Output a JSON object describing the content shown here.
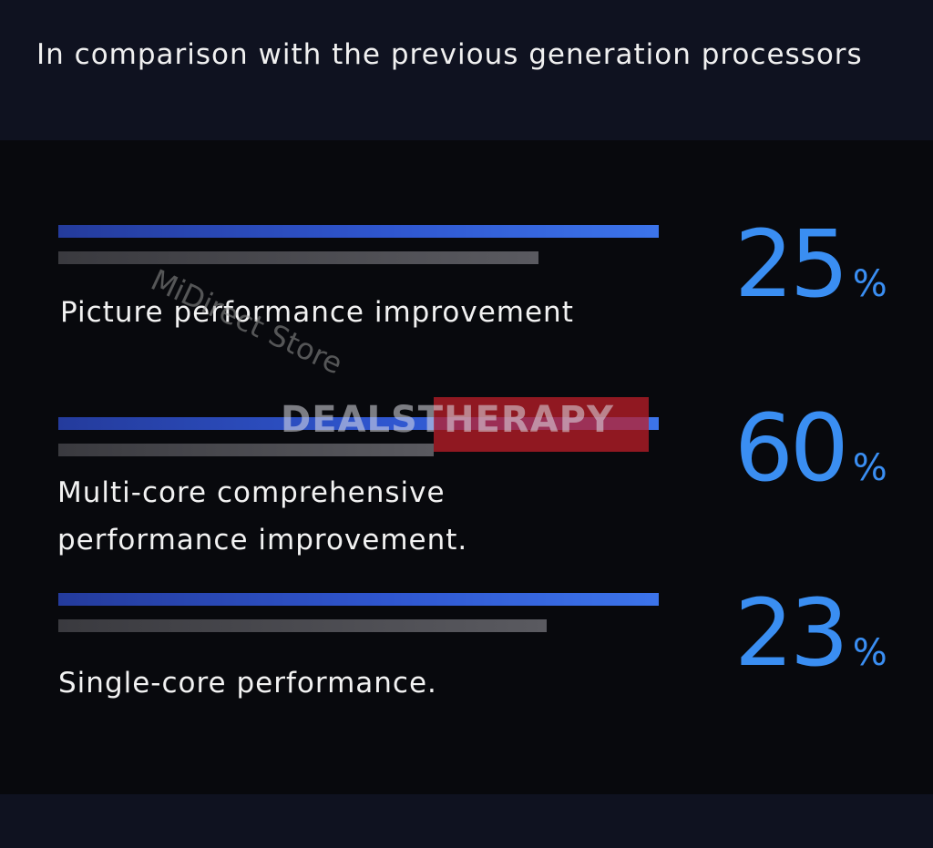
{
  "header": {
    "title": "In comparison with the previous generation processors"
  },
  "colors": {
    "accent_blue": "#3a8ef2",
    "bar_blue": "#2f56cf",
    "bar_gray": "#55555a",
    "panel_background": "#08090d"
  },
  "watermarks": {
    "store": "MiDirect Store",
    "brand": "DEALSTHERAPY"
  },
  "chart_data": {
    "type": "bar",
    "title": "In comparison with the previous generation processors",
    "categories": [
      "Picture performance improvement",
      "Multi-core comprehensive\nperformance improvement.",
      "Single-core performance."
    ],
    "series": [
      {
        "values": [
          125,
          160,
          123
        ]
      },
      {
        "values": [
          100,
          100,
          100
        ]
      }
    ],
    "improvements": [
      {
        "value": 25,
        "text": "25",
        "unit": "%"
      },
      {
        "value": 60,
        "text": "60",
        "unit": "%"
      },
      {
        "value": 23,
        "text": "23",
        "unit": "%"
      }
    ],
    "legend": "none",
    "grid": false
  }
}
